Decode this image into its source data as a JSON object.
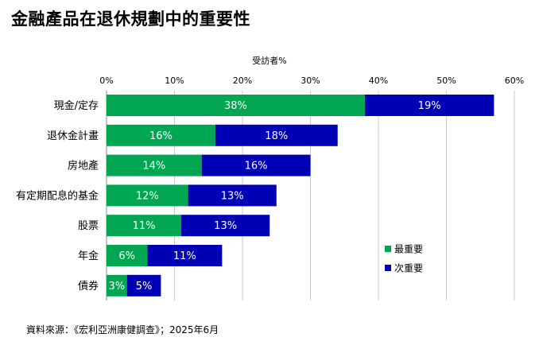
{
  "title": "金融產品在退休規劃中的重要性",
  "source": "資料來源：《宏利亞洲康健調查》；2025年6月",
  "colors": {
    "primary": "#00a651",
    "secondary": "#0000b4",
    "grid": "#c8c8c8",
    "axis": "#888888"
  },
  "chart_data": {
    "type": "bar",
    "orientation": "horizontal",
    "stacked": true,
    "xlabel": "受訪者%",
    "xlim": [
      0,
      60
    ],
    "xticks": [
      0,
      10,
      20,
      30,
      40,
      50,
      60
    ],
    "xtick_labels": [
      "0%",
      "10%",
      "20%",
      "30%",
      "40%",
      "50%",
      "60%"
    ],
    "grid": true,
    "legend_position": "lower-right",
    "categories": [
      "現金/定存",
      "退休金計畫",
      "房地產",
      "有定期配息的基金",
      "股票",
      "年金",
      "債券"
    ],
    "series": [
      {
        "name": "最重要",
        "values": [
          38,
          16,
          14,
          12,
          11,
          6,
          3
        ],
        "labels": [
          "38%",
          "16%",
          "14%",
          "12%",
          "11%",
          "6%",
          "3%"
        ]
      },
      {
        "name": "次重要",
        "values": [
          19,
          18,
          16,
          13,
          13,
          11,
          5
        ],
        "labels": [
          "19%",
          "18%",
          "16%",
          "13%",
          "13%",
          "11%",
          "5%"
        ]
      }
    ]
  }
}
